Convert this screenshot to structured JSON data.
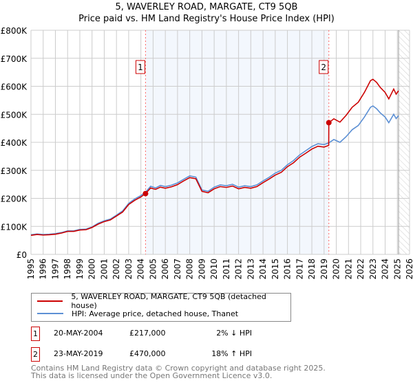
{
  "title": "5, WAVERLEY ROAD, MARGATE, CT9 5QB",
  "subtitle": "Price paid vs. HM Land Registry's House Price Index (HPI)",
  "chart_data": {
    "type": "line",
    "title": "5, WAVERLEY ROAD, MARGATE, CT9 5QB",
    "subtitle": "Price paid vs. HM Land Registry's House Price Index (HPI)",
    "xlim": [
      1995,
      2026
    ],
    "ylim": [
      0,
      800000
    ],
    "y_ticks": [
      0,
      100000,
      200000,
      300000,
      400000,
      500000,
      600000,
      700000,
      800000
    ],
    "y_tick_labels": [
      "£0",
      "£100K",
      "£200K",
      "£300K",
      "£400K",
      "£500K",
      "£600K",
      "£700K",
      "£800K"
    ],
    "x_ticks": [
      "1995",
      "1996",
      "1997",
      "1998",
      "1999",
      "2000",
      "2001",
      "2002",
      "2003",
      "2004",
      "2005",
      "2006",
      "2007",
      "2008",
      "2009",
      "2010",
      "2011",
      "2012",
      "2013",
      "2014",
      "2015",
      "2016",
      "2017",
      "2018",
      "2019",
      "2020",
      "2021",
      "2022",
      "2023",
      "2024",
      "2025",
      "2026"
    ],
    "grid": true,
    "shaded_range": [
      2004.38,
      2019.39
    ],
    "forecast_hatch_from": 2025.1,
    "series": [
      {
        "name": "5, WAVERLEY ROAD, MARGATE, CT9 5QB (detached house)",
        "color": "#cc0000",
        "x": [
          1995,
          1995.5,
          1996,
          1996.5,
          1997,
          1997.5,
          1998,
          1998.5,
          1999,
          1999.5,
          2000,
          2000.5,
          2001,
          2001.5,
          2002,
          2002.5,
          2003,
          2003.5,
          2004,
          2004.38,
          2004.8,
          2005.2,
          2005.6,
          2006,
          2006.5,
          2007,
          2007.5,
          2008,
          2008.5,
          2009,
          2009.5,
          2010,
          2010.5,
          2011,
          2011.5,
          2012,
          2012.5,
          2013,
          2013.5,
          2014,
          2014.5,
          2015,
          2015.5,
          2016,
          2016.5,
          2017,
          2017.5,
          2018,
          2018.5,
          2019,
          2019.38,
          2019.39,
          2019.8,
          2020.3,
          2020.8,
          2021.3,
          2021.8,
          2022.3,
          2022.8,
          2023,
          2023.3,
          2023.6,
          2024,
          2024.3,
          2024.7,
          2024.9,
          2025.1
        ],
        "y": [
          68000,
          71000,
          69000,
          70000,
          72000,
          76000,
          82000,
          82000,
          87000,
          88000,
          96000,
          108000,
          117000,
          123000,
          137000,
          151000,
          178000,
          193000,
          205000,
          217000,
          237000,
          232000,
          240000,
          236000,
          241000,
          249000,
          262000,
          274000,
          270000,
          225000,
          220000,
          234000,
          242000,
          239000,
          244000,
          234000,
          239000,
          236000,
          242000,
          256000,
          269000,
          283000,
          293000,
          313000,
          327000,
          347000,
          361000,
          376000,
          386000,
          383000,
          389000,
          470000,
          484000,
          472000,
          496000,
          525000,
          543000,
          578000,
          620000,
          625000,
          614000,
          596000,
          578000,
          555000,
          590000,
          572000,
          584000
        ]
      },
      {
        "name": "HPI: Average price, detached house, Thanet",
        "color": "#5b8fd4",
        "x": [
          1995,
          1995.5,
          1996,
          1996.5,
          1997,
          1997.5,
          1998,
          1998.5,
          1999,
          1999.5,
          2000,
          2000.5,
          2001,
          2001.5,
          2002,
          2002.5,
          2003,
          2003.5,
          2004,
          2004.38,
          2004.8,
          2005.2,
          2005.6,
          2006,
          2006.5,
          2007,
          2007.5,
          2008,
          2008.5,
          2009,
          2009.5,
          2010,
          2010.5,
          2011,
          2011.5,
          2012,
          2012.5,
          2013,
          2013.5,
          2014,
          2014.5,
          2015,
          2015.5,
          2016,
          2016.5,
          2017,
          2017.5,
          2018,
          2018.5,
          2019,
          2019.39,
          2019.8,
          2020.3,
          2020.8,
          2021.3,
          2021.8,
          2022.3,
          2022.8,
          2023,
          2023.3,
          2023.6,
          2024,
          2024.3,
          2024.7,
          2024.9,
          2025.1
        ],
        "y": [
          70000,
          73000,
          71000,
          72000,
          74000,
          78000,
          84000,
          84000,
          89000,
          90000,
          98000,
          111000,
          120000,
          126000,
          140000,
          155000,
          182000,
          198000,
          210000,
          222000,
          243000,
          237000,
          246000,
          242000,
          247000,
          255000,
          268000,
          280000,
          276000,
          230000,
          225000,
          240000,
          248000,
          245000,
          250000,
          240000,
          245000,
          242000,
          248000,
          262000,
          275000,
          290000,
          300000,
          320000,
          335000,
          355000,
          370000,
          385000,
          395000,
          392000,
          398000,
          410000,
          400000,
          420000,
          445000,
          460000,
          490000,
          525000,
          530000,
          520000,
          505000,
          490000,
          470000,
          500000,
          485000,
          495000
        ]
      }
    ],
    "sales": [
      {
        "id": "1",
        "x": 2004.38,
        "price": 217000,
        "date": "20-MAY-2004",
        "price_label": "£217,000",
        "hpi_diff": "2% ↓ HPI"
      },
      {
        "id": "2",
        "x": 2019.39,
        "price": 470000,
        "date": "23-MAY-2019",
        "price_label": "£470,000",
        "hpi_diff": "18% ↑ HPI"
      }
    ]
  },
  "legend": {
    "property": "5, WAVERLEY ROAD, MARGATE, CT9 5QB (detached house)",
    "hpi": "HPI: Average price, detached house, Thanet"
  },
  "footer": {
    "line1": "Contains HM Land Registry data © Crown copyright and database right 2025.",
    "line2": "This data is licensed under the Open Government Licence v3.0."
  }
}
